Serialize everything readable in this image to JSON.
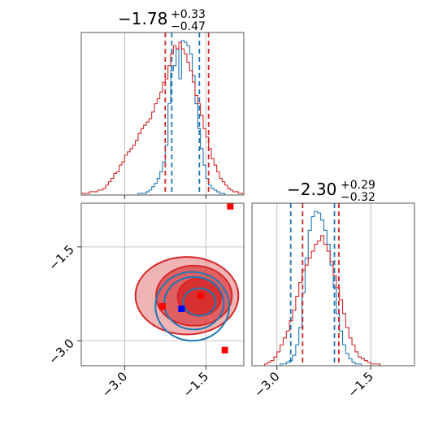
{
  "colors": {
    "posterior_a": "#1f77b4",
    "posterior_b": "#d62728",
    "true_value_marker": "#0000ff",
    "estimate_marker": "#ff0000"
  },
  "panels": {
    "param1": {
      "title_main": "−1.78",
      "title_plus": "+0.33",
      "title_minus": "−0.47"
    },
    "param2": {
      "title_main": "−2.30",
      "title_plus": "+0.29",
      "title_minus": "−0.32"
    }
  },
  "chart_data": {
    "type": "corner",
    "parameters": 2,
    "axis_ranges": {
      "param1": [
        -3.8,
        -0.8
      ],
      "param2": [
        -3.4,
        -0.8
      ]
    },
    "ticks": {
      "param1": {
        "values": [
          -3.0,
          -1.5
        ],
        "labels": [
          "−3.0",
          "−1.5"
        ]
      },
      "param2": {
        "values": [
          -3.0,
          -1.5
        ],
        "labels": [
          "−3.0",
          "−1.5"
        ]
      }
    },
    "grid": true,
    "series": [
      {
        "color": "#1f77b4",
        "hist_param1": {
          "bin_start": -3.8,
          "bin_width": 0.05,
          "counts": [
            0,
            0,
            0,
            0,
            0,
            0,
            0,
            0,
            0,
            0,
            0,
            0,
            0,
            0,
            0,
            0,
            0,
            0,
            0,
            0,
            0,
            1,
            1,
            1,
            2,
            3,
            5,
            7,
            10,
            14,
            20,
            30,
            55,
            75,
            78,
            88,
            70,
            93,
            92,
            90,
            85,
            72,
            55,
            40,
            28,
            18,
            10,
            6,
            4,
            3,
            2,
            1,
            1,
            0,
            0,
            0,
            0,
            0,
            0,
            0
          ]
        },
        "quantiles_param1": [
          -2.13,
          -1.62
        ],
        "hist_param2": {
          "bin_start": -3.4,
          "bin_width": 0.05,
          "counts": [
            0,
            0,
            0,
            0,
            0,
            0,
            0,
            0,
            0,
            1,
            1,
            2,
            3,
            6,
            12,
            22,
            42,
            62,
            78,
            86,
            89,
            88,
            84,
            78,
            70,
            58,
            45,
            30,
            20,
            12,
            7,
            4,
            2,
            1,
            1,
            0,
            0,
            0,
            0,
            0,
            0,
            0,
            0,
            0,
            0,
            0,
            0,
            0,
            0,
            0,
            0,
            0
          ]
        },
        "quantiles_param2": [
          -2.78,
          -2.08
        ],
        "contours": [
          {
            "level": 0.39,
            "cx": -1.62,
            "cy": -2.38,
            "rx": 0.3,
            "ry": 0.22
          },
          {
            "level": 0.86,
            "cx": -1.72,
            "cy": -2.4,
            "rx": 0.55,
            "ry": 0.42
          },
          {
            "level": 0.99,
            "cx": -1.75,
            "cy": -2.45,
            "rx": 0.68,
            "ry": 0.55
          }
        ]
      },
      {
        "color": "#d62728",
        "hist_param1": {
          "bin_start": -3.8,
          "bin_width": 0.05,
          "counts": [
            1,
            1,
            1,
            2,
            2,
            2,
            3,
            3,
            4,
            6,
            8,
            10,
            13,
            14,
            18,
            20,
            24,
            26,
            28,
            30,
            33,
            37,
            40,
            42,
            44,
            46,
            50,
            55,
            58,
            62,
            68,
            70,
            78,
            85,
            90,
            88,
            92,
            88,
            85,
            80,
            75,
            68,
            60,
            55,
            48,
            40,
            35,
            28,
            22,
            18,
            14,
            10,
            8,
            6,
            4,
            3,
            2,
            2,
            1,
            1
          ]
        },
        "quantiles_param1": [
          -2.25,
          -1.45
        ],
        "hist_param2": {
          "bin_start": -3.4,
          "bin_width": 0.05,
          "counts": [
            0,
            0,
            0,
            0,
            1,
            2,
            3,
            5,
            8,
            12,
            16,
            20,
            26,
            32,
            40,
            48,
            55,
            58,
            62,
            66,
            70,
            72,
            75,
            70,
            66,
            60,
            52,
            45,
            38,
            30,
            22,
            16,
            12,
            8,
            5,
            4,
            3,
            2,
            1,
            1,
            1,
            0,
            0,
            0,
            0,
            0,
            0,
            0,
            0,
            0,
            0,
            0
          ]
        },
        "quantiles_param2": [
          -2.59,
          -2.01
        ],
        "contours": [
          {
            "level": 0.39,
            "cx": -1.62,
            "cy": -2.3,
            "rx": 0.4,
            "ry": 0.3
          },
          {
            "level": 0.86,
            "cx": -1.72,
            "cy": -2.28,
            "rx": 0.7,
            "ry": 0.48
          },
          {
            "level": 0.99,
            "cx": -1.85,
            "cy": -2.28,
            "rx": 0.95,
            "ry": 0.62
          }
        ]
      }
    ],
    "markers": [
      {
        "x": -1.95,
        "y": -2.49,
        "color": "#0000ff",
        "shape": "square"
      },
      {
        "x": -2.3,
        "y": -2.45,
        "color": "#ff0000",
        "shape": "square"
      },
      {
        "x": -1.6,
        "y": -2.28,
        "color": "#ff0000",
        "shape": "square"
      },
      {
        "x": -1.15,
        "y": -3.15,
        "color": "#ff0000",
        "shape": "square"
      },
      {
        "x": -1.05,
        "y": -0.85,
        "color": "#ff0000",
        "shape": "square"
      }
    ]
  }
}
